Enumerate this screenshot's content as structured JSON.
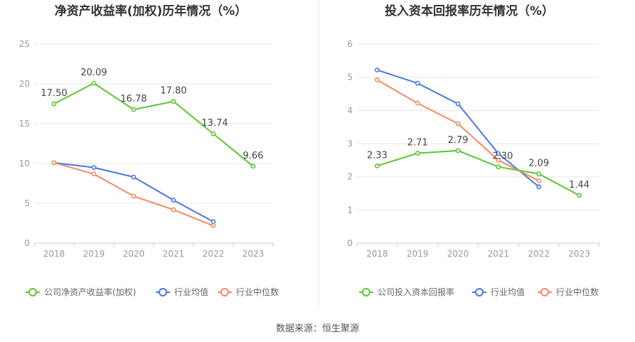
{
  "source_label": "数据来源：恒生聚源",
  "chart_data": [
    {
      "type": "line",
      "title": "净资产收益率(加权)历年情况（%）",
      "categories": [
        "2018",
        "2019",
        "2020",
        "2021",
        "2022",
        "2023"
      ],
      "ylim": [
        0,
        25
      ],
      "yticks": [
        0,
        5,
        10,
        15,
        20,
        25
      ],
      "grid": true,
      "legend_position": "bottom-left",
      "series": [
        {
          "name": "公司净资产收益率(加权)",
          "color": "#5cc72f",
          "values": [
            17.5,
            20.09,
            16.78,
            17.8,
            13.74,
            9.66
          ],
          "labels": [
            "17.50",
            "20.09",
            "16.78",
            "17.80",
            "13.74",
            "9.66"
          ]
        },
        {
          "name": "行业均值",
          "color": "#4a78e0",
          "values": [
            10.1,
            9.5,
            8.3,
            5.4,
            2.7,
            null
          ]
        },
        {
          "name": "行业中位数",
          "color": "#f08c63",
          "values": [
            10.1,
            8.7,
            5.9,
            4.2,
            2.2,
            null
          ]
        }
      ]
    },
    {
      "type": "line",
      "title": "投入资本回报率历年情况（%）",
      "categories": [
        "2018",
        "2019",
        "2020",
        "2021",
        "2022",
        "2023"
      ],
      "ylim": [
        0,
        6
      ],
      "yticks": [
        0,
        1,
        2,
        3,
        4,
        5,
        6
      ],
      "grid": true,
      "legend_position": "bottom-left",
      "series": [
        {
          "name": "公司投入资本回报率",
          "color": "#5cc72f",
          "values": [
            2.33,
            2.71,
            2.79,
            2.3,
            2.09,
            1.44
          ],
          "labels": [
            "2.33",
            "2.71",
            "2.79",
            "2.30",
            "2.09",
            "1.44"
          ]
        },
        {
          "name": "行业均值",
          "color": "#4a78e0",
          "values": [
            5.22,
            4.82,
            4.2,
            2.7,
            1.7,
            null
          ]
        },
        {
          "name": "行业中位数",
          "color": "#f08c63",
          "values": [
            4.92,
            4.22,
            3.6,
            2.5,
            1.88,
            null
          ]
        }
      ]
    }
  ]
}
